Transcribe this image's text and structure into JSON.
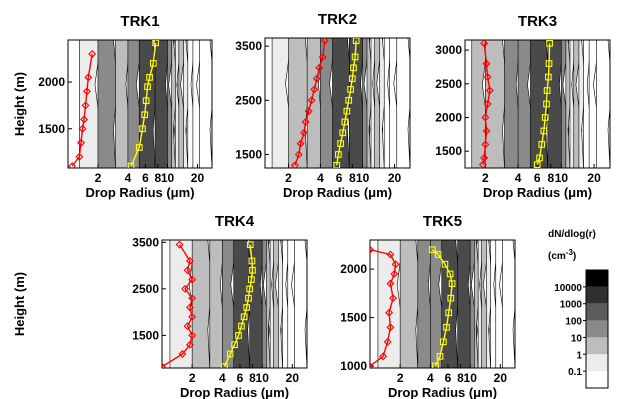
{
  "chart_data": [
    {
      "type": "heatmap",
      "title": "TRK1",
      "xlabel": "Drop Radius (μm)",
      "ylabel": "Height (m)",
      "xscale": "log",
      "xlim": [
        1.0,
        28
      ],
      "ylim": [
        1080,
        2450
      ],
      "xticks": [
        2,
        4,
        6,
        8,
        10,
        20
      ],
      "xtick_labels": [
        "2",
        "4",
        "6",
        "8",
        "10",
        "20"
      ],
      "yticks": [
        1500,
        2000
      ],
      "ytick_labels": [
        "1500",
        "2000"
      ],
      "band_radius": [
        1.3,
        2.0,
        3.0,
        4.0,
        5.2,
        7.5,
        10.0,
        11.0,
        12.0,
        13.0,
        14.5,
        16.0,
        18.0,
        21.0
      ],
      "band_level": [
        1,
        100,
        10,
        100,
        1000,
        1000,
        100,
        10,
        1,
        10,
        1,
        0.1,
        0.1,
        0.1
      ],
      "red_series": {
        "x": [
          1.1,
          1.3,
          1.35,
          1.4,
          1.45,
          1.5,
          1.55,
          1.6,
          1.75
        ],
        "y": [
          1100,
          1200,
          1350,
          1500,
          1600,
          1750,
          1900,
          2050,
          2300
        ]
      },
      "yellow_series": {
        "x": [
          4.3,
          5.2,
          5.6,
          5.9,
          6.1,
          6.3,
          6.6,
          7.2,
          7.6
        ],
        "y": [
          1100,
          1300,
          1500,
          1650,
          1800,
          1950,
          2050,
          2200,
          2420
        ]
      }
    },
    {
      "type": "heatmap",
      "title": "TRK2",
      "xlabel": "Drop Radius (μm)",
      "ylabel": "",
      "xscale": "log",
      "xlim": [
        1.2,
        28
      ],
      "ylim": [
        1250,
        3650
      ],
      "xticks": [
        2,
        4,
        6,
        8,
        10,
        20
      ],
      "xtick_labels": [
        "2",
        "4",
        "6",
        "8",
        "10",
        "20"
      ],
      "yticks": [
        1500,
        2500,
        3500
      ],
      "ytick_labels": [
        "1500",
        "2500",
        "3500"
      ],
      "band_radius": [
        1.4,
        2.0,
        3.0,
        4.0,
        5.2,
        7.5,
        10.0,
        11.0,
        12.0,
        13.0,
        14.5,
        16.0,
        18.0,
        21.0
      ],
      "band_level": [
        1,
        10,
        10,
        100,
        1000,
        1000,
        100,
        10,
        1,
        10,
        1,
        0.1,
        0.1,
        0.1
      ],
      "red_series": {
        "x": [
          2.3,
          2.5,
          2.6,
          2.8,
          2.9,
          3.1,
          3.3,
          3.5,
          3.7,
          3.9,
          4.2,
          4.4
        ],
        "y": [
          1300,
          1500,
          1700,
          1900,
          2100,
          2300,
          2500,
          2700,
          2900,
          3100,
          3300,
          3600
        ]
      },
      "yellow_series": {
        "x": [
          5.7,
          5.9,
          6.2,
          6.5,
          6.8,
          7.1,
          7.4,
          7.7,
          8.0,
          8.2,
          8.5,
          8.7
        ],
        "y": [
          1300,
          1500,
          1700,
          1900,
          2100,
          2300,
          2500,
          2700,
          2900,
          3100,
          3300,
          3600
        ]
      }
    },
    {
      "type": "heatmap",
      "title": "TRK3",
      "xlabel": "Drop Radius (μm)",
      "ylabel": "",
      "xscale": "log",
      "xlim": [
        1.3,
        28
      ],
      "ylim": [
        1250,
        3150
      ],
      "xticks": [
        2,
        4,
        6,
        8,
        10,
        20
      ],
      "xtick_labels": [
        "2",
        "4",
        "6",
        "8",
        "10",
        "20"
      ],
      "yticks": [
        1500,
        2000,
        2500,
        3000
      ],
      "ytick_labels": [
        "1500",
        "2000",
        "2500",
        "3000"
      ],
      "band_radius": [
        1.5,
        2.0,
        3.0,
        4.0,
        5.2,
        7.5,
        10.0,
        11.0,
        12.0,
        13.0,
        14.5,
        16.0,
        18.0,
        21.0
      ],
      "band_level": [
        10,
        10,
        100,
        100,
        1000,
        1000,
        100,
        10,
        1,
        10,
        1,
        0.1,
        0.1,
        0.1
      ],
      "red_series": {
        "x": [
          1.9,
          1.95,
          2.0,
          2.05,
          2.0,
          2.1,
          2.2,
          2.1,
          2.05,
          1.95
        ],
        "y": [
          1300,
          1400,
          1600,
          1800,
          2000,
          2200,
          2400,
          2600,
          2800,
          3100
        ]
      },
      "yellow_series": {
        "x": [
          6.0,
          6.3,
          6.6,
          6.9,
          7.1,
          7.3,
          7.4,
          7.6,
          7.7,
          7.8
        ],
        "y": [
          1300,
          1400,
          1600,
          1800,
          2000,
          2200,
          2400,
          2600,
          2800,
          3100
        ]
      }
    },
    {
      "type": "heatmap",
      "title": "TRK4",
      "xlabel": "Drop Radius (μm)",
      "ylabel": "Height (m)",
      "xscale": "log",
      "xlim": [
        1.0,
        28
      ],
      "ylim": [
        800,
        3550
      ],
      "xticks": [
        2,
        4,
        6,
        8,
        10,
        20
      ],
      "xtick_labels": [
        "2",
        "4",
        "6",
        "8",
        "10",
        "20"
      ],
      "yticks": [
        1500,
        2500,
        3500
      ],
      "ytick_labels": [
        "1500",
        "2500",
        "3500"
      ],
      "band_radius": [
        1.2,
        2.0,
        3.0,
        4.0,
        5.2,
        7.5,
        10.0,
        11.0,
        12.0,
        13.0,
        14.5,
        16.0,
        18.0,
        21.0
      ],
      "band_level": [
        1,
        10,
        10,
        100,
        1000,
        1000,
        100,
        10,
        1,
        10,
        1,
        0.1,
        0.1,
        0.1
      ],
      "red_series": {
        "x": [
          1.0,
          1.6,
          1.9,
          2.0,
          1.8,
          2.0,
          1.9,
          2.0,
          1.7,
          2.0,
          1.8,
          1.9,
          1.5
        ],
        "y": [
          830,
          1100,
          1300,
          1500,
          1700,
          1900,
          2100,
          2300,
          2500,
          2700,
          2900,
          3100,
          3450
        ]
      },
      "yellow_series": {
        "x": [
          4.2,
          4.8,
          5.3,
          5.8,
          6.2,
          6.6,
          7.0,
          7.3,
          7.5,
          7.8,
          8.0,
          7.9,
          7.6
        ],
        "y": [
          830,
          1100,
          1300,
          1500,
          1700,
          1900,
          2100,
          2300,
          2500,
          2700,
          2900,
          3100,
          3450
        ]
      }
    },
    {
      "type": "heatmap",
      "title": "TRK5",
      "xlabel": "Drop Radius (μm)",
      "ylabel": "",
      "xscale": "log",
      "xlim": [
        1.0,
        28
      ],
      "ylim": [
        980,
        2300
      ],
      "xticks": [
        2,
        4,
        6,
        8,
        10,
        20
      ],
      "xtick_labels": [
        "2",
        "4",
        "6",
        "8",
        "10",
        "20"
      ],
      "yticks": [
        1000,
        1500,
        2000
      ],
      "ytick_labels": [
        "1000",
        "1500",
        "2000"
      ],
      "band_radius": [
        1.2,
        2.0,
        3.0,
        4.0,
        5.2,
        7.5,
        10.0,
        11.0,
        12.0,
        13.0,
        14.5,
        16.0,
        18.0,
        21.0
      ],
      "band_level": [
        1,
        10,
        100,
        100,
        1000,
        1000,
        100,
        10,
        1,
        10,
        1,
        0.1,
        0.1,
        0.1
      ],
      "red_series": {
        "x": [
          1.0,
          1.35,
          1.5,
          1.6,
          1.55,
          1.7,
          1.6,
          1.75,
          1.8,
          1.6,
          1.0
        ],
        "y": [
          1000,
          1100,
          1250,
          1400,
          1550,
          1700,
          1850,
          1950,
          2050,
          2150,
          2200
        ]
      },
      "yellow_series": {
        "x": [
          4.5,
          5.0,
          5.4,
          5.8,
          6.1,
          6.4,
          6.6,
          6.3,
          5.6,
          4.8,
          4.2
        ],
        "y": [
          1000,
          1100,
          1250,
          1400,
          1550,
          1700,
          1850,
          1950,
          2050,
          2150,
          2200
        ]
      }
    }
  ],
  "colorbar": {
    "title_line1": "dN/dlog(r)",
    "title_line2": "(cm",
    "title_sup": "-3",
    "title_line2_end": ")",
    "levels": [
      10000,
      1000,
      100,
      10,
      1,
      0.1
    ],
    "labels": [
      "10000",
      "1000",
      "100",
      "10",
      "1",
      "0.1"
    ],
    "colors": [
      "#000000",
      "#303030",
      "#5c5c5c",
      "#8a8a8a",
      "#bdbdbd",
      "#ececec",
      "#ffffff"
    ]
  },
  "colors": {
    "red_line": "#ff0000",
    "yellow_line": "#ffff00",
    "grid_line": "#000000",
    "level_colors": {
      "0.1": "#ffffff",
      "1": "#ececec",
      "10": "#bdbdbd",
      "100": "#8a8a8a",
      "1000": "#4a4a4a",
      "10000": "#111111"
    }
  }
}
